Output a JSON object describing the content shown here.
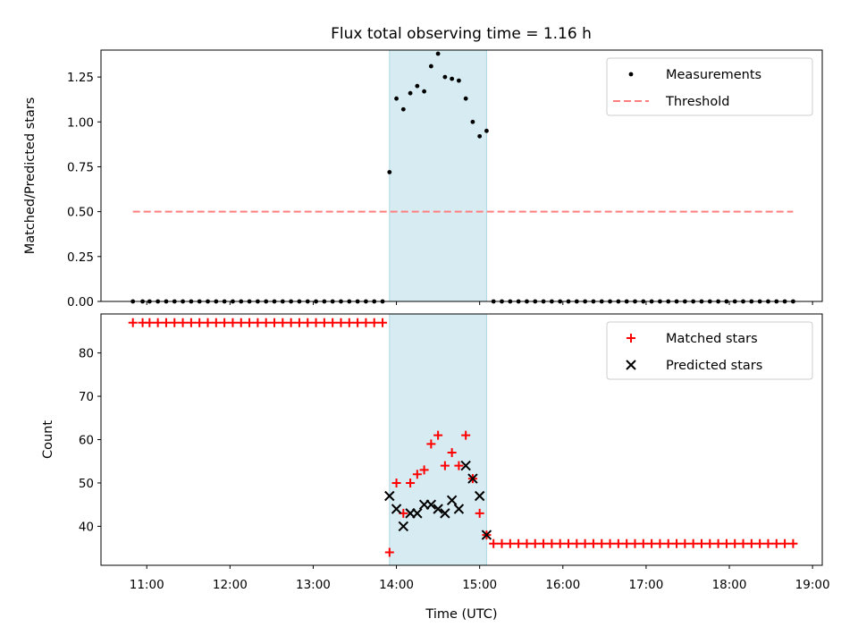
{
  "figure_title": "Flux total observing time = 1.16 h",
  "colors": {
    "measurement": "#000000",
    "threshold": "#ff7f7f",
    "matched": "#ff0000",
    "predicted": "#000000",
    "shade": "#add8e6"
  },
  "chart_data": [
    {
      "type": "scatter",
      "ylabel": "Matched/Predicted stars",
      "ylim": [
        0.0,
        1.4
      ],
      "yticks": [
        0.0,
        0.25,
        0.5,
        0.75,
        1.0,
        1.25
      ],
      "yticklabels": [
        "0.00",
        "0.25",
        "0.50",
        "0.75",
        "1.00",
        "1.25"
      ],
      "xlim": [
        "10:27",
        "19:07"
      ],
      "xticks": [
        "11:00",
        "12:00",
        "13:00",
        "14:00",
        "15:00",
        "16:00",
        "17:00",
        "18:00",
        "19:00"
      ],
      "shaded_span": [
        "13:55",
        "15:05"
      ],
      "legend_position": "top-right",
      "series": [
        {
          "name": "Measurements",
          "marker": "dot",
          "x": [
            "10:50",
            "10:57",
            "11:02",
            "11:08",
            "11:14",
            "11:20",
            "11:26",
            "11:32",
            "11:38",
            "11:44",
            "11:50",
            "11:56",
            "12:02",
            "12:08",
            "12:14",
            "12:20",
            "12:26",
            "12:32",
            "12:38",
            "12:44",
            "12:50",
            "12:56",
            "13:02",
            "13:08",
            "13:14",
            "13:20",
            "13:26",
            "13:32",
            "13:38",
            "13:44",
            "13:50",
            "13:55",
            "14:00",
            "14:05",
            "14:10",
            "14:15",
            "14:20",
            "14:25",
            "14:30",
            "14:35",
            "14:40",
            "14:45",
            "14:50",
            "14:55",
            "15:00",
            "15:05",
            "15:10",
            "15:16",
            "15:22",
            "15:28",
            "15:34",
            "15:40",
            "15:46",
            "15:52",
            "15:58",
            "16:04",
            "16:10",
            "16:16",
            "16:22",
            "16:28",
            "16:34",
            "16:40",
            "16:46",
            "16:52",
            "16:58",
            "17:04",
            "17:10",
            "17:16",
            "17:22",
            "17:28",
            "17:34",
            "17:40",
            "17:46",
            "17:52",
            "17:58",
            "18:04",
            "18:10",
            "18:16",
            "18:22",
            "18:28",
            "18:34",
            "18:40",
            "18:46"
          ],
          "y": [
            0,
            0,
            0,
            0,
            0,
            0,
            0,
            0,
            0,
            0,
            0,
            0,
            0,
            0,
            0,
            0,
            0,
            0,
            0,
            0,
            0,
            0,
            0,
            0,
            0,
            0,
            0,
            0,
            0,
            0,
            0,
            0.72,
            1.13,
            1.07,
            1.16,
            1.2,
            1.17,
            1.31,
            1.38,
            1.25,
            1.24,
            1.23,
            1.13,
            1.0,
            0.92,
            0.95,
            0,
            0,
            0,
            0,
            0,
            0,
            0,
            0,
            0,
            0,
            0,
            0,
            0,
            0,
            0,
            0,
            0,
            0,
            0,
            0,
            0,
            0,
            0,
            0,
            0,
            0,
            0,
            0,
            0,
            0,
            0,
            0,
            0,
            0,
            0,
            0,
            0
          ]
        },
        {
          "name": "Threshold",
          "marker": "dashed-line",
          "x": [
            "10:50",
            "18:46"
          ],
          "y": [
            0.5,
            0.5
          ]
        }
      ]
    },
    {
      "type": "scatter",
      "xlabel": "Time (UTC)",
      "ylabel": "Count",
      "ylim": [
        31,
        89
      ],
      "yticks": [
        40,
        50,
        60,
        70,
        80
      ],
      "yticklabels": [
        "40",
        "50",
        "60",
        "70",
        "80"
      ],
      "xlim": [
        "10:27",
        "19:07"
      ],
      "xticks": [
        "11:00",
        "12:00",
        "13:00",
        "14:00",
        "15:00",
        "16:00",
        "17:00",
        "18:00",
        "19:00"
      ],
      "xticklabels": [
        "11:00",
        "12:00",
        "13:00",
        "14:00",
        "15:00",
        "16:00",
        "17:00",
        "18:00",
        "19:00"
      ],
      "shaded_span": [
        "13:55",
        "15:05"
      ],
      "legend_position": "top-right",
      "series": [
        {
          "name": "Matched stars",
          "marker": "plus",
          "x": [
            "10:50",
            "10:57",
            "11:02",
            "11:08",
            "11:14",
            "11:20",
            "11:26",
            "11:32",
            "11:38",
            "11:44",
            "11:50",
            "11:56",
            "12:02",
            "12:08",
            "12:14",
            "12:20",
            "12:26",
            "12:32",
            "12:38",
            "12:44",
            "12:50",
            "12:56",
            "13:02",
            "13:08",
            "13:14",
            "13:20",
            "13:26",
            "13:32",
            "13:38",
            "13:44",
            "13:50",
            "13:55",
            "14:00",
            "14:05",
            "14:10",
            "14:15",
            "14:20",
            "14:25",
            "14:30",
            "14:35",
            "14:40",
            "14:45",
            "14:50",
            "14:55",
            "15:00",
            "15:05",
            "15:10",
            "15:16",
            "15:22",
            "15:28",
            "15:34",
            "15:40",
            "15:46",
            "15:52",
            "15:58",
            "16:04",
            "16:10",
            "16:16",
            "16:22",
            "16:28",
            "16:34",
            "16:40",
            "16:46",
            "16:52",
            "16:58",
            "17:04",
            "17:10",
            "17:16",
            "17:22",
            "17:28",
            "17:34",
            "17:40",
            "17:46",
            "17:52",
            "17:58",
            "18:04",
            "18:10",
            "18:16",
            "18:22",
            "18:28",
            "18:34",
            "18:40",
            "18:46"
          ],
          "y": [
            87,
            87,
            87,
            87,
            87,
            87,
            87,
            87,
            87,
            87,
            87,
            87,
            87,
            87,
            87,
            87,
            87,
            87,
            87,
            87,
            87,
            87,
            87,
            87,
            87,
            87,
            87,
            87,
            87,
            87,
            87,
            34,
            50,
            43,
            50,
            52,
            53,
            59,
            61,
            54,
            57,
            54,
            61,
            51,
            43,
            38,
            36,
            36,
            36,
            36,
            36,
            36,
            36,
            36,
            36,
            36,
            36,
            36,
            36,
            36,
            36,
            36,
            36,
            36,
            36,
            36,
            36,
            36,
            36,
            36,
            36,
            36,
            36,
            36,
            36,
            36,
            36,
            36,
            36,
            36,
            36,
            36,
            36
          ]
        },
        {
          "name": "Predicted stars",
          "marker": "x",
          "x": [
            "13:55",
            "14:00",
            "14:05",
            "14:10",
            "14:15",
            "14:20",
            "14:25",
            "14:30",
            "14:35",
            "14:40",
            "14:45",
            "14:50",
            "14:55",
            "15:00",
            "15:05"
          ],
          "y": [
            47,
            44,
            40,
            43,
            43,
            45,
            45,
            44,
            43,
            46,
            44,
            54,
            51,
            47,
            38
          ]
        }
      ]
    }
  ]
}
